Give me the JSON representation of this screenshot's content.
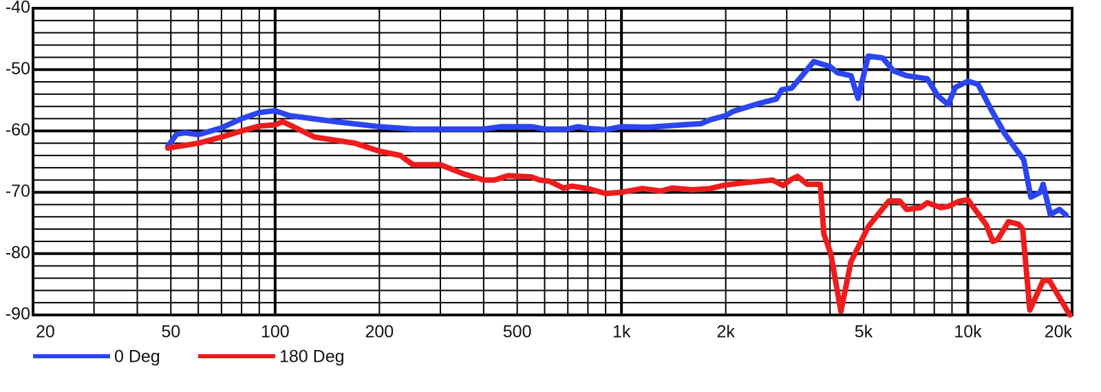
{
  "chart_data": {
    "type": "line",
    "log_x": true,
    "grid": true,
    "xlim": [
      20,
      20000
    ],
    "ylim": [
      -90,
      -40
    ],
    "xticks": [
      20,
      50,
      100,
      200,
      500,
      {
        "value": 1000,
        "label": "1k"
      },
      {
        "value": 2000,
        "label": "2k"
      },
      {
        "value": 5000,
        "label": "5k"
      },
      {
        "value": 10000,
        "label": "10k"
      },
      {
        "value": 20000,
        "label": "20k"
      }
    ],
    "yticks": [
      -40,
      -50,
      -60,
      -70,
      -80,
      -90
    ],
    "xgrid": [
      30,
      40,
      50,
      60,
      70,
      80,
      90,
      100,
      200,
      300,
      400,
      500,
      600,
      700,
      800,
      900,
      1000,
      2000,
      3000,
      4000,
      5000,
      6000,
      7000,
      8000,
      9000,
      10000
    ],
    "ygrid": [
      -88,
      -86,
      -84,
      -82,
      -80,
      -78,
      -76,
      -74,
      -72,
      -70,
      -68,
      -66,
      -64,
      -62,
      -60,
      -58,
      -56,
      -54,
      -52,
      -50,
      -48,
      -46,
      -44,
      -42
    ],
    "series": [
      {
        "name": "0 Deg",
        "color": "#2b45f0",
        "x": [
          49,
          52,
          55,
          60,
          70,
          80,
          90,
          100,
          110,
          150,
          200,
          250,
          400,
          450,
          550,
          600,
          700,
          750,
          800,
          900,
          1000,
          1200,
          1500,
          1700,
          1800,
          2000,
          2100,
          2500,
          2800,
          2900,
          3100,
          3300,
          3590,
          4000,
          4200,
          4600,
          4820,
          5160,
          5680,
          6100,
          6660,
          7640,
          8200,
          8770,
          9200,
          10000,
          10700,
          11700,
          12800,
          13700,
          14500,
          15200,
          16200,
          16500,
          17300,
          18400,
          19200
        ],
        "values": [
          -62.5,
          -60.5,
          -60.3,
          -60.6,
          -59.5,
          -58,
          -57,
          -56.7,
          -57.5,
          -58.5,
          -59.3,
          -59.7,
          -59.7,
          -59.3,
          -59.3,
          -59.7,
          -59.7,
          -59.3,
          -59.6,
          -59.8,
          -59.3,
          -59.4,
          -59,
          -58.8,
          -58.2,
          -57.5,
          -56.8,
          -55.5,
          -54.8,
          -53.3,
          -53,
          -51.2,
          -48.7,
          -49.5,
          -50.5,
          -51,
          -54.7,
          -47.8,
          -48.1,
          -50.2,
          -51,
          -51.5,
          -54.3,
          -55.7,
          -52.9,
          -51.9,
          -52.4,
          -56.6,
          -60.5,
          -62.8,
          -64.7,
          -70.8,
          -70,
          -68.7,
          -73.6,
          -72.8,
          -73.7
        ]
      },
      {
        "name": "180 Deg",
        "color": "#ee1c1c",
        "x": [
          49,
          60,
          70,
          80,
          90,
          100,
          105,
          110,
          130,
          170,
          200,
          230,
          250,
          300,
          350,
          400,
          430,
          470,
          550,
          580,
          620,
          680,
          720,
          800,
          900,
          1000,
          1150,
          1300,
          1400,
          1600,
          1800,
          2000,
          2300,
          2730,
          2930,
          3070,
          3220,
          3440,
          3750,
          3840,
          4020,
          4300,
          4600,
          5160,
          5920,
          6350,
          6660,
          7300,
          7640,
          8370,
          8770,
          9400,
          10000,
          11300,
          11800,
          12200,
          13100,
          14000,
          14400,
          15100,
          16500,
          17200,
          19700
        ],
        "values": [
          -62.8,
          -62,
          -61,
          -60,
          -59.2,
          -59,
          -58.5,
          -59,
          -61,
          -62,
          -63.3,
          -64,
          -65.5,
          -65.5,
          -67,
          -68,
          -68,
          -67.3,
          -67.5,
          -68,
          -68.2,
          -69.3,
          -69,
          -69.4,
          -70.2,
          -70,
          -69.4,
          -69.8,
          -69.3,
          -69.6,
          -69.4,
          -68.8,
          -68.4,
          -68,
          -68.9,
          -68,
          -67.4,
          -68.7,
          -68.7,
          -76.8,
          -80,
          -89.4,
          -81.3,
          -75.6,
          -71.4,
          -71.4,
          -72.8,
          -72.5,
          -71.7,
          -72.5,
          -72.3,
          -71.5,
          -71.2,
          -75.3,
          -78,
          -77.7,
          -74.8,
          -75.2,
          -76,
          -89.2,
          -84.4,
          -84.4,
          -90
        ]
      }
    ]
  }
}
